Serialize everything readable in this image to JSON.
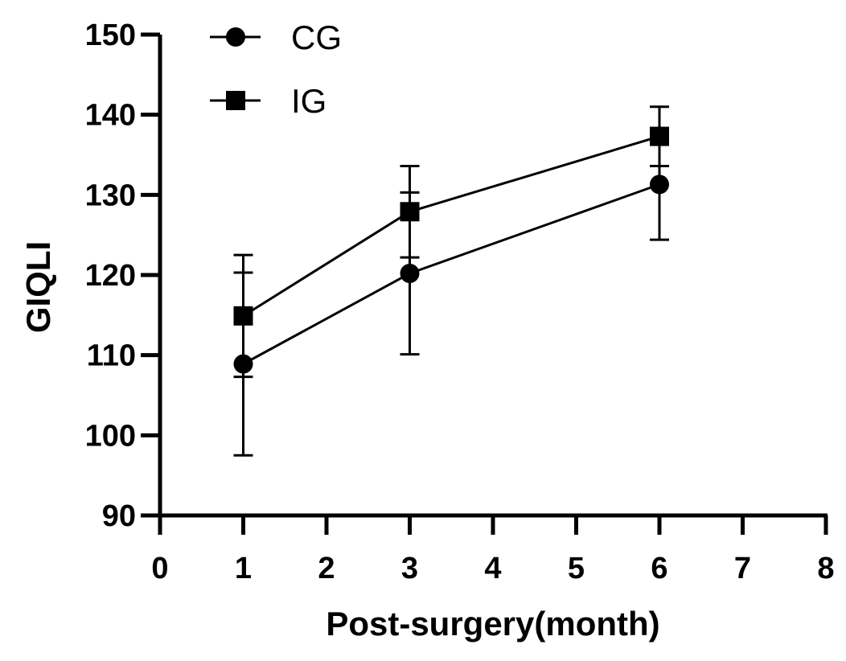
{
  "chart_data": {
    "type": "line",
    "title": "",
    "xlabel": "Post-surgery(month)",
    "ylabel": "GIQLI",
    "xlim": [
      0,
      8
    ],
    "ylim": [
      90,
      150
    ],
    "xticks": [
      0,
      1,
      2,
      3,
      4,
      5,
      6,
      7,
      8
    ],
    "yticks": [
      90,
      100,
      110,
      120,
      130,
      140,
      150
    ],
    "grid": false,
    "legend_position": "top-left",
    "x": [
      1,
      3,
      6
    ],
    "series": [
      {
        "name": "CG",
        "marker": "circle",
        "values": [
          108.9,
          120.2,
          131.3
        ],
        "error": [
          11.4,
          10.1,
          6.9
        ]
      },
      {
        "name": "IG",
        "marker": "square",
        "values": [
          114.9,
          127.9,
          137.3
        ],
        "error": [
          7.6,
          5.7,
          3.7
        ]
      }
    ],
    "colors": {
      "line": "#000000",
      "marker": "#000000",
      "axis": "#000000"
    }
  }
}
